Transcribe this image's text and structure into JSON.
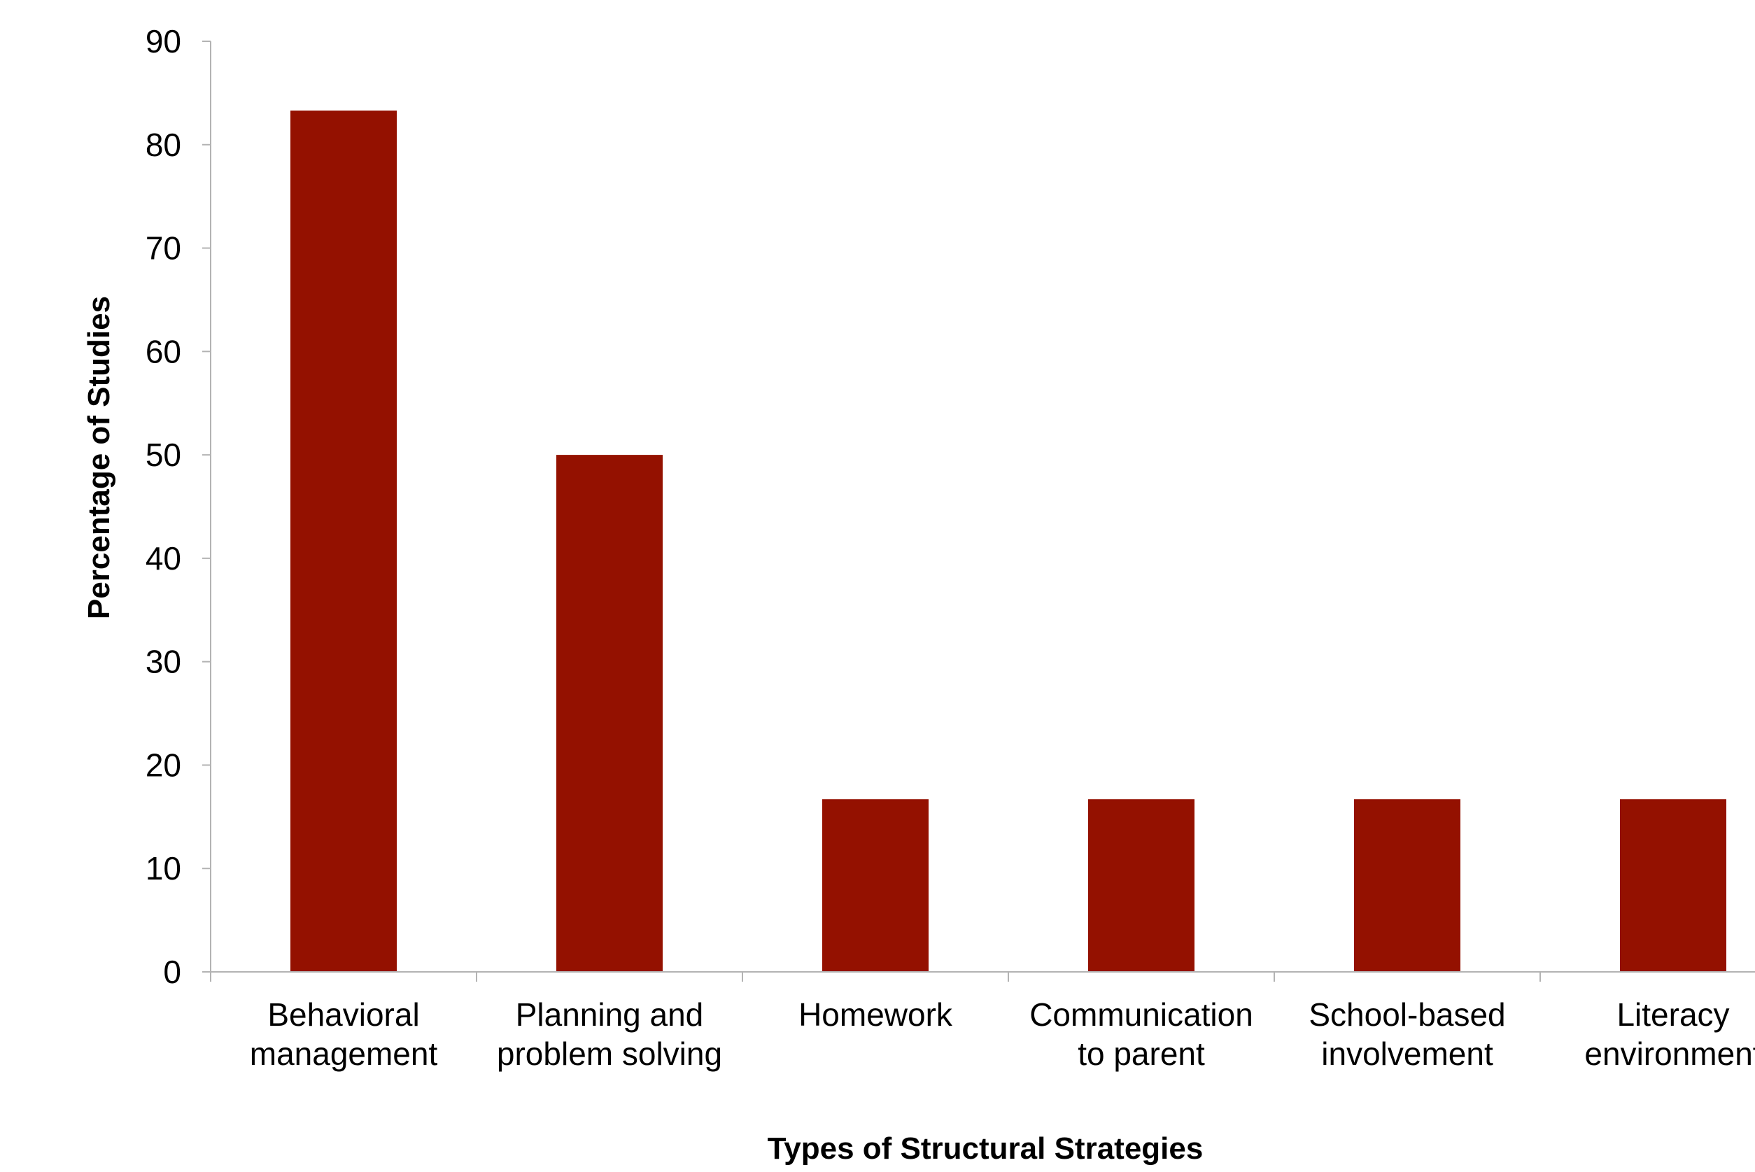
{
  "chart_data": {
    "type": "bar",
    "title": "",
    "xlabel": "Types of Structural Strategies",
    "ylabel": "Percentage of Studies",
    "categories": [
      [
        "Behavioral",
        "management"
      ],
      [
        "Planning and",
        "problem solving"
      ],
      [
        "Homework"
      ],
      [
        "Communication",
        "to parent"
      ],
      [
        "School-based",
        "involvement"
      ],
      [
        "Literacy",
        "environment"
      ]
    ],
    "values": [
      83.3,
      50,
      16.7,
      16.7,
      16.7,
      16.7
    ],
    "ylim": [
      0,
      90
    ],
    "yticks": [
      0,
      10,
      20,
      30,
      40,
      50,
      60,
      70,
      80,
      90
    ],
    "grid": false,
    "legend": "none",
    "bar_color": "#941100",
    "axis_color": "#b3b3b3"
  }
}
